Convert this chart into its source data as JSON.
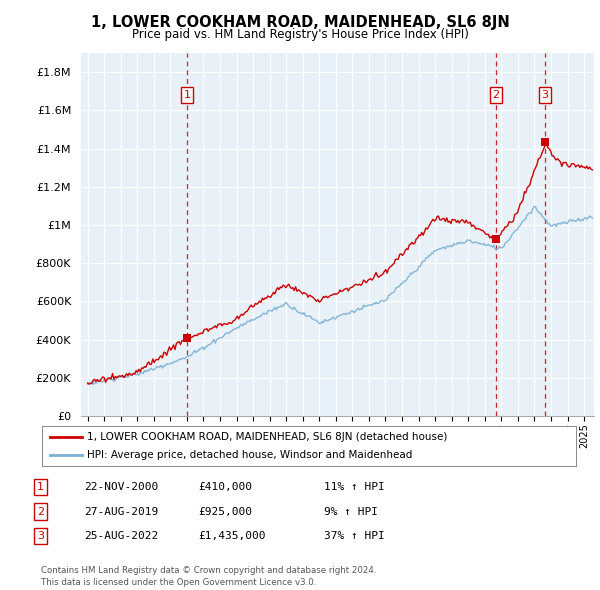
{
  "title": "1, LOWER COOKHAM ROAD, MAIDENHEAD, SL6 8JN",
  "subtitle": "Price paid vs. HM Land Registry's House Price Index (HPI)",
  "ylabel_ticks": [
    "£0",
    "£200K",
    "£400K",
    "£600K",
    "£800K",
    "£1M",
    "£1.2M",
    "£1.4M",
    "£1.6M",
    "£1.8M"
  ],
  "ytick_values": [
    0,
    200000,
    400000,
    600000,
    800000,
    1000000,
    1200000,
    1400000,
    1600000,
    1800000
  ],
  "ylim": [
    0,
    1900000
  ],
  "legend_line1": "1, LOWER COOKHAM ROAD, MAIDENHEAD, SL6 8JN (detached house)",
  "legend_line2": "HPI: Average price, detached house, Windsor and Maidenhead",
  "table_rows": [
    {
      "num": "1",
      "date": "22-NOV-2000",
      "price": "£410,000",
      "hpi": "11% ↑ HPI"
    },
    {
      "num": "2",
      "date": "27-AUG-2019",
      "price": "£925,000",
      "hpi": "9% ↑ HPI"
    },
    {
      "num": "3",
      "date": "25-AUG-2022",
      "price": "£1,435,000",
      "hpi": "37% ↑ HPI"
    }
  ],
  "footer": "Contains HM Land Registry data © Crown copyright and database right 2024.\nThis data is licensed under the Open Government Licence v3.0.",
  "sale_years": [
    2001.0,
    2019.67,
    2022.65
  ],
  "sale_prices": [
    410000,
    925000,
    1435000
  ],
  "sale_marker_labels": [
    "1",
    "2",
    "3"
  ],
  "red_color": "#cc0000",
  "blue_color": "#7ab0d4",
  "chart_bg": "#e8f0f8",
  "background_color": "#ffffff",
  "grid_color": "#cccccc",
  "dashed_color": "#cc0000"
}
